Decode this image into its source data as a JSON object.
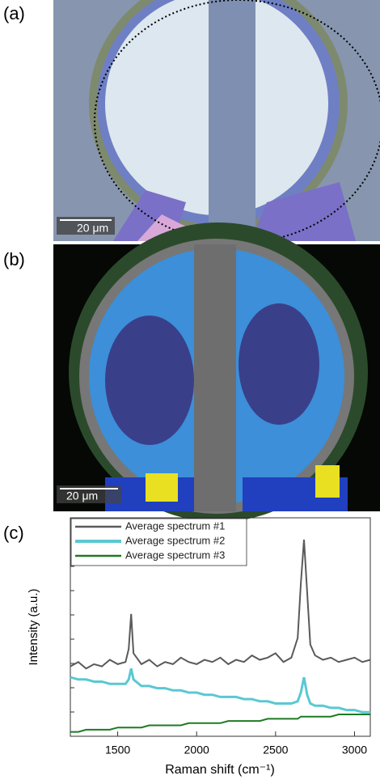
{
  "panels": {
    "a": {
      "label": "(a)",
      "scale_bar": "20 μm"
    },
    "b": {
      "label": "(b)",
      "scale_bar": "20 μm"
    },
    "c": {
      "label": "(c)"
    }
  },
  "chart_data": {
    "type": "line",
    "x_label": "Raman shift (cm⁻¹)",
    "y_label": "Intensity (a.u.)",
    "x": [
      1200,
      1250,
      1300,
      1350,
      1400,
      1450,
      1500,
      1550,
      1570,
      1585,
      1600,
      1650,
      1700,
      1750,
      1800,
      1850,
      1900,
      1950,
      2000,
      2050,
      2100,
      2150,
      2200,
      2250,
      2300,
      2350,
      2400,
      2450,
      2500,
      2550,
      2600,
      2640,
      2660,
      2680,
      2700,
      2720,
      2750,
      2800,
      2850,
      2900,
      2950,
      3000,
      3050,
      3100
    ],
    "series": [
      {
        "name": "Average spectrum  #1",
        "color": "#5a5a5a",
        "values": [
          32,
          34,
          31,
          33,
          32,
          35,
          33,
          34,
          40,
          56,
          38,
          33,
          35,
          32,
          34,
          33,
          36,
          34,
          33,
          35,
          34,
          36,
          33,
          35,
          34,
          37,
          35,
          36,
          38,
          34,
          36,
          45,
          70,
          90,
          66,
          42,
          37,
          35,
          36,
          34,
          35,
          36,
          34,
          35
        ]
      },
      {
        "name": "Average spectrum  #2",
        "color": "#5bc8d2",
        "values": [
          27,
          26,
          26,
          25,
          25,
          24,
          24,
          24,
          26,
          31,
          26,
          23,
          23,
          22,
          22,
          21,
          21,
          20,
          20,
          19,
          19,
          18,
          18,
          18,
          17,
          17,
          16,
          16,
          15,
          15,
          15,
          16,
          20,
          27,
          19,
          15,
          14,
          14,
          13,
          13,
          12,
          12,
          11,
          11
        ]
      },
      {
        "name": "Average spectrum  #3",
        "color": "#1e7a22",
        "values": [
          2,
          2,
          3,
          3,
          3,
          3,
          4,
          4,
          4,
          4,
          4,
          4,
          5,
          5,
          5,
          5,
          5,
          6,
          6,
          6,
          6,
          6,
          7,
          7,
          7,
          7,
          7,
          8,
          8,
          8,
          8,
          8,
          9,
          9,
          9,
          9,
          9,
          9,
          9,
          10,
          10,
          10,
          10,
          10
        ]
      }
    ],
    "xlim": [
      1200,
      3100
    ],
    "ylim": [
      0,
      100
    ],
    "xticks": [
      1500,
      2000,
      2500,
      3000
    ],
    "legend": "upper left"
  }
}
